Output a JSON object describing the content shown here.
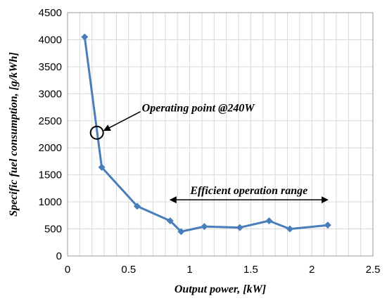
{
  "chart_data": {
    "type": "line",
    "x": [
      0.14,
      0.28,
      0.57,
      0.84,
      0.93,
      1.12,
      1.41,
      1.65,
      1.82,
      2.13
    ],
    "series": [
      {
        "values": [
          4050,
          1640,
          920,
          650,
          450,
          545,
          525,
          650,
          500,
          570
        ],
        "color": "#4a7ebb",
        "marker": "diamond"
      }
    ],
    "xlabel": "Output power, [kW]",
    "ylabel": "Specific fuel consumption, [g/kWh]",
    "xlim": [
      0,
      2.5
    ],
    "ylim": [
      0,
      4500
    ],
    "xticks": [
      0,
      0.5,
      1,
      1.5,
      2,
      2.5
    ],
    "xtick_labels": [
      "0",
      "0.5",
      "1",
      "1.5",
      "2",
      "2.5"
    ],
    "yticks": [
      0,
      500,
      1000,
      1500,
      2000,
      2500,
      3000,
      3500,
      4000,
      4500
    ],
    "ytick_labels": [
      "0",
      "500",
      "1000",
      "1500",
      "2000",
      "2500",
      "3000",
      "3500",
      "4000",
      "4500"
    ],
    "grid": true,
    "annotations": {
      "operating_point": {
        "text": "Operating point @240W",
        "x": 0.24,
        "y": 2280
      },
      "efficient_range": {
        "text": "Efficient operation range",
        "x_start": 0.84,
        "x_end": 2.13,
        "y": 570
      }
    }
  }
}
